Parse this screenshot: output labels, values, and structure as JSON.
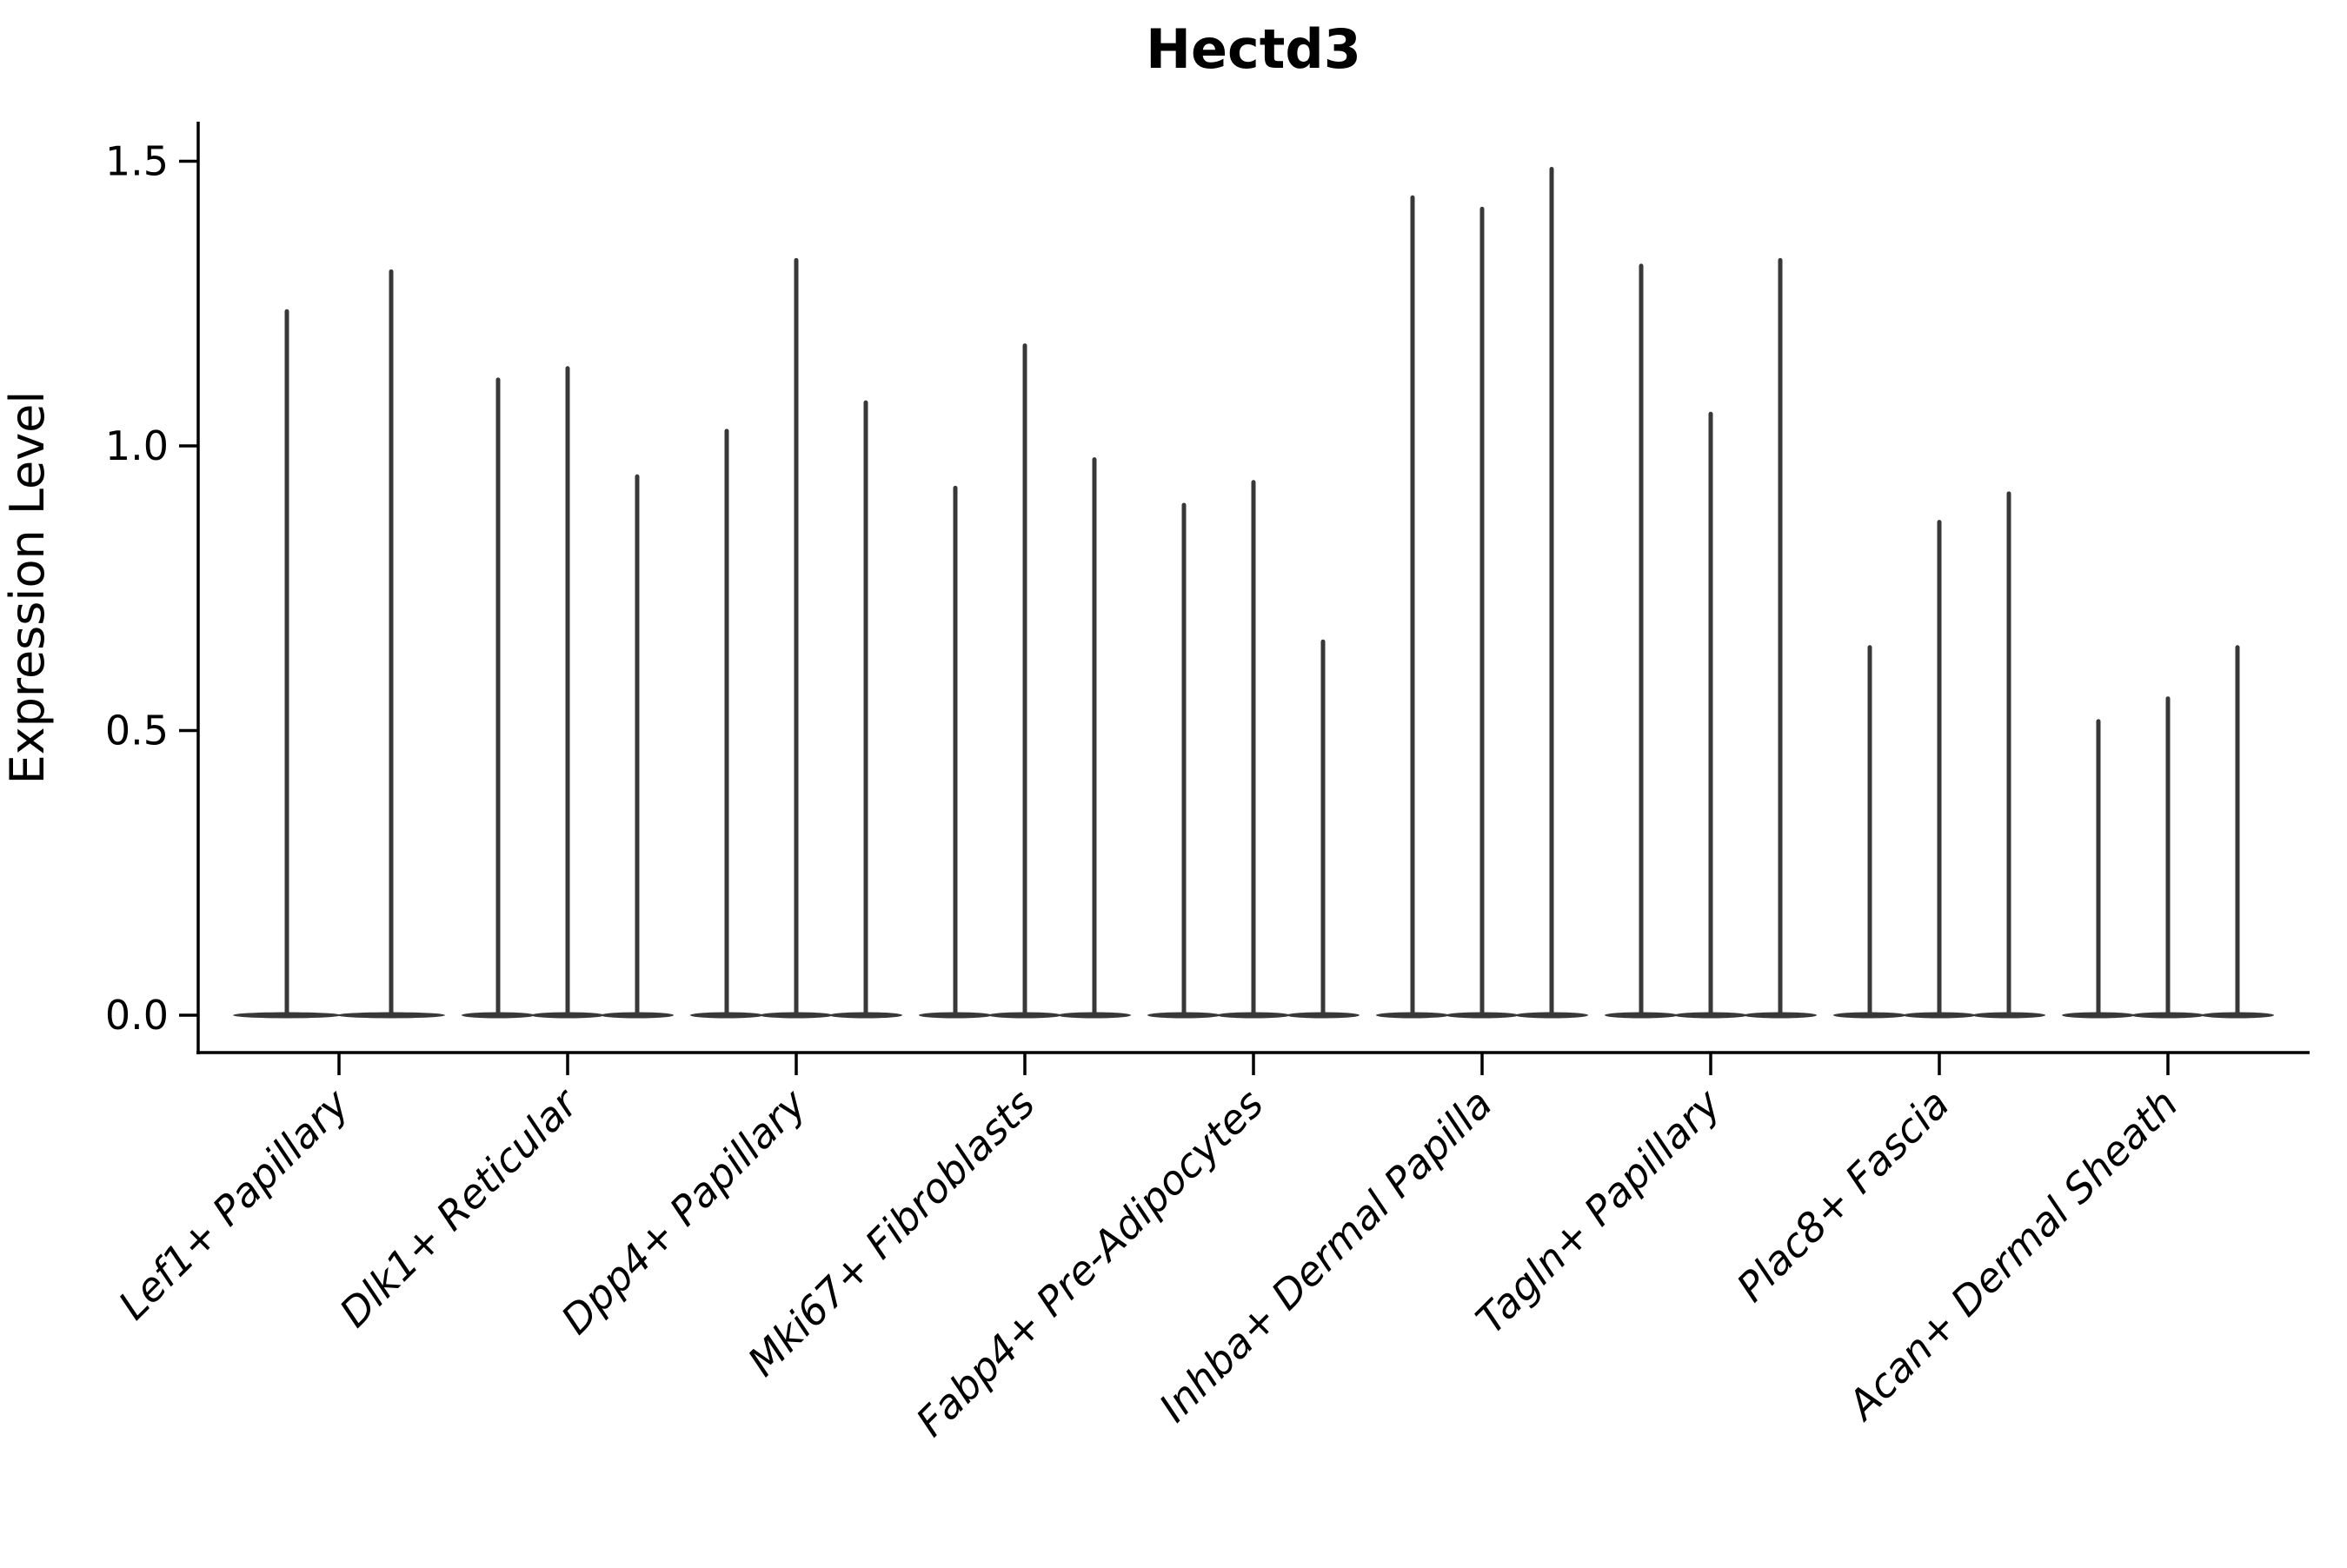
{
  "title": "Hectd3",
  "style": {
    "violin_color": "#383838",
    "axis_color": "#000000",
    "background": "#ffffff"
  },
  "chart_data": {
    "type": "violin",
    "title": "Hectd3",
    "xlabel": "",
    "ylabel": "Expression Level",
    "ylim": [
      -0.07,
      1.57
    ],
    "grid": false,
    "legend": "none",
    "ytick_labels": [
      "0.0",
      "0.5",
      "1.0",
      "1.5"
    ],
    "ytick_values": [
      0.0,
      0.5,
      1.0,
      1.5
    ],
    "description": "Violin plot of Hectd3 expression; each cell-type group contains 2-3 extremely thin violins (bulk of cells at 0 forming a flat base, thin spike up to the max expression value).",
    "categories": [
      {
        "name": "Lef1+ Papillary",
        "violins": [
          {
            "offset": -60,
            "max": 1.24
          },
          {
            "offset": 60,
            "max": 1.31
          }
        ]
      },
      {
        "name": "Dlk1+ Reticular",
        "violins": [
          {
            "offset": -80,
            "max": 1.12
          },
          {
            "offset": 0,
            "max": 1.14
          },
          {
            "offset": 80,
            "max": 0.95
          }
        ]
      },
      {
        "name": "Dpp4+ Papillary",
        "violins": [
          {
            "offset": -80,
            "max": 1.03
          },
          {
            "offset": 0,
            "max": 1.33
          },
          {
            "offset": 80,
            "max": 1.08
          }
        ]
      },
      {
        "name": "Mki67+ Fibroblasts",
        "violins": [
          {
            "offset": -80,
            "max": 0.93
          },
          {
            "offset": 0,
            "max": 1.18
          },
          {
            "offset": 80,
            "max": 0.98
          }
        ]
      },
      {
        "name": "Fabp4+ Pre-Adipocytes",
        "violins": [
          {
            "offset": -80,
            "max": 0.9
          },
          {
            "offset": 0,
            "max": 0.94
          },
          {
            "offset": 80,
            "max": 0.66
          }
        ]
      },
      {
        "name": "Inhba+ Dermal Papilla",
        "violins": [
          {
            "offset": -80,
            "max": 1.44
          },
          {
            "offset": 0,
            "max": 1.42
          },
          {
            "offset": 80,
            "max": 1.49
          }
        ]
      },
      {
        "name": "Tagln+ Papillary",
        "violins": [
          {
            "offset": -80,
            "max": 1.32
          },
          {
            "offset": 0,
            "max": 1.06
          },
          {
            "offset": 80,
            "max": 1.33
          }
        ]
      },
      {
        "name": "Plac8+ Fascia",
        "violins": [
          {
            "offset": -80,
            "max": 0.65
          },
          {
            "offset": 0,
            "max": 0.87
          },
          {
            "offset": 80,
            "max": 0.92
          }
        ]
      },
      {
        "name": "Acan+ Dermal Sheath",
        "violins": [
          {
            "offset": -80,
            "max": 0.52
          },
          {
            "offset": 0,
            "max": 0.56
          },
          {
            "offset": 80,
            "max": 0.65
          }
        ]
      }
    ]
  }
}
